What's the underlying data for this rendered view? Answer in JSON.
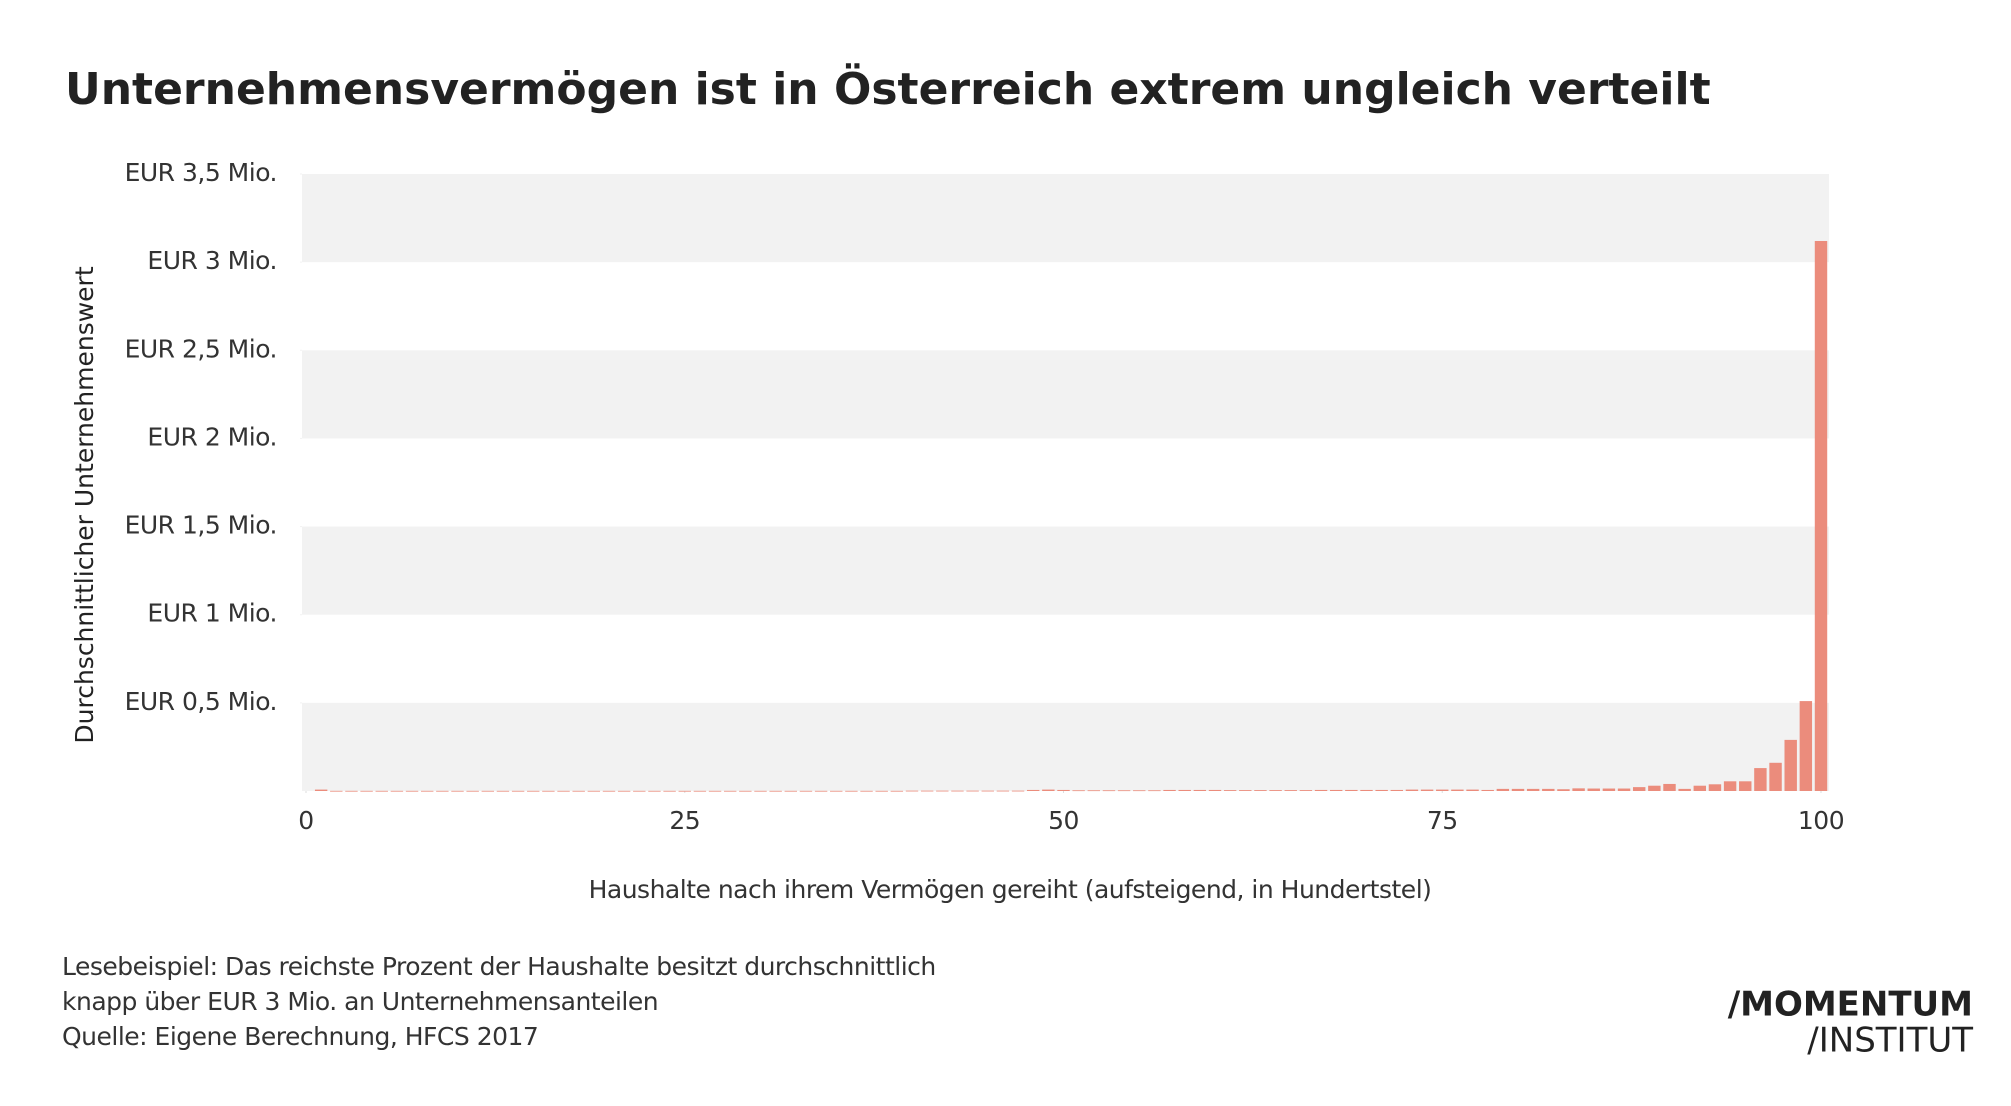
{
  "chart_data": {
    "type": "bar",
    "title": "Unternehmensvermögen ist in Österreich extrem ungleich verteilt",
    "x_label": "Haushalte nach ihrem Vermögen gereiht (aufsteigend, in Hundertstel)",
    "y_label": "Durchschnittlicher Unternehmenswert",
    "x": [
      1,
      2,
      3,
      4,
      5,
      6,
      7,
      8,
      9,
      10,
      11,
      12,
      13,
      14,
      15,
      16,
      17,
      18,
      19,
      20,
      21,
      22,
      23,
      24,
      25,
      26,
      27,
      28,
      29,
      30,
      31,
      32,
      33,
      34,
      35,
      36,
      37,
      38,
      39,
      40,
      41,
      42,
      43,
      44,
      45,
      46,
      47,
      48,
      49,
      50,
      51,
      52,
      53,
      54,
      55,
      56,
      57,
      58,
      59,
      60,
      61,
      62,
      63,
      64,
      65,
      66,
      67,
      68,
      69,
      70,
      71,
      72,
      73,
      74,
      75,
      76,
      77,
      78,
      79,
      80,
      81,
      82,
      83,
      84,
      85,
      86,
      87,
      88,
      89,
      90,
      91,
      92,
      93,
      94,
      95,
      96,
      97,
      98,
      99,
      100
    ],
    "values": [
      8000,
      1000,
      1000,
      1000,
      1000,
      1000,
      1000,
      1000,
      1000,
      1000,
      1000,
      1000,
      1000,
      1000,
      1000,
      1000,
      1000,
      1000,
      1000,
      1000,
      1000,
      1000,
      1000,
      1000,
      1000,
      1000,
      1000,
      1000,
      1000,
      1000,
      1000,
      1000,
      1000,
      1000,
      1000,
      1000,
      1000,
      1000,
      1000,
      2000,
      2000,
      2000,
      2000,
      2000,
      2000,
      2000,
      2000,
      6000,
      8000,
      6000,
      4000,
      4000,
      4000,
      4000,
      4000,
      4000,
      6000,
      6000,
      6000,
      6000,
      5000,
      5000,
      5000,
      5000,
      5000,
      5000,
      6000,
      6000,
      6000,
      6000,
      6000,
      6000,
      8000,
      8000,
      8000,
      8000,
      8000,
      6000,
      12000,
      12000,
      12000,
      12000,
      10000,
      15000,
      14000,
      14000,
      14000,
      22000,
      30000,
      40000,
      12000,
      30000,
      38000,
      55000,
      55000,
      130000,
      160000,
      290000,
      510000,
      3120000
    ],
    "color": "#eb8c7c",
    "xlim": [
      0,
      100
    ],
    "xticks": [
      0,
      25,
      50,
      75,
      100
    ],
    "ylim": [
      0,
      3500000
    ],
    "yticks": [
      {
        "value": 500000,
        "label": "EUR 0,5 Mio."
      },
      {
        "value": 1000000,
        "label": "EUR 1 Mio."
      },
      {
        "value": 1500000,
        "label": "EUR 1,5 Mio."
      },
      {
        "value": 2000000,
        "label": "EUR 2 Mio."
      },
      {
        "value": 2500000,
        "label": "EUR 2,5 Mio."
      },
      {
        "value": 3000000,
        "label": "EUR 3 Mio."
      },
      {
        "value": 3500000,
        "label": "EUR 3,5 Mio."
      }
    ],
    "band_color": "#f2f2f2",
    "notes": [
      "Lesebeispiel: Das reichste Prozent der Haushalte besitzt durchschnittlich",
      "knapp über EUR 3 Mio. an Unternehmensanteilen",
      "Quelle: Eigene Berechnung, HFCS 2017"
    ],
    "logo": [
      "/MOMENTUM",
      "/INSTITUT"
    ]
  }
}
